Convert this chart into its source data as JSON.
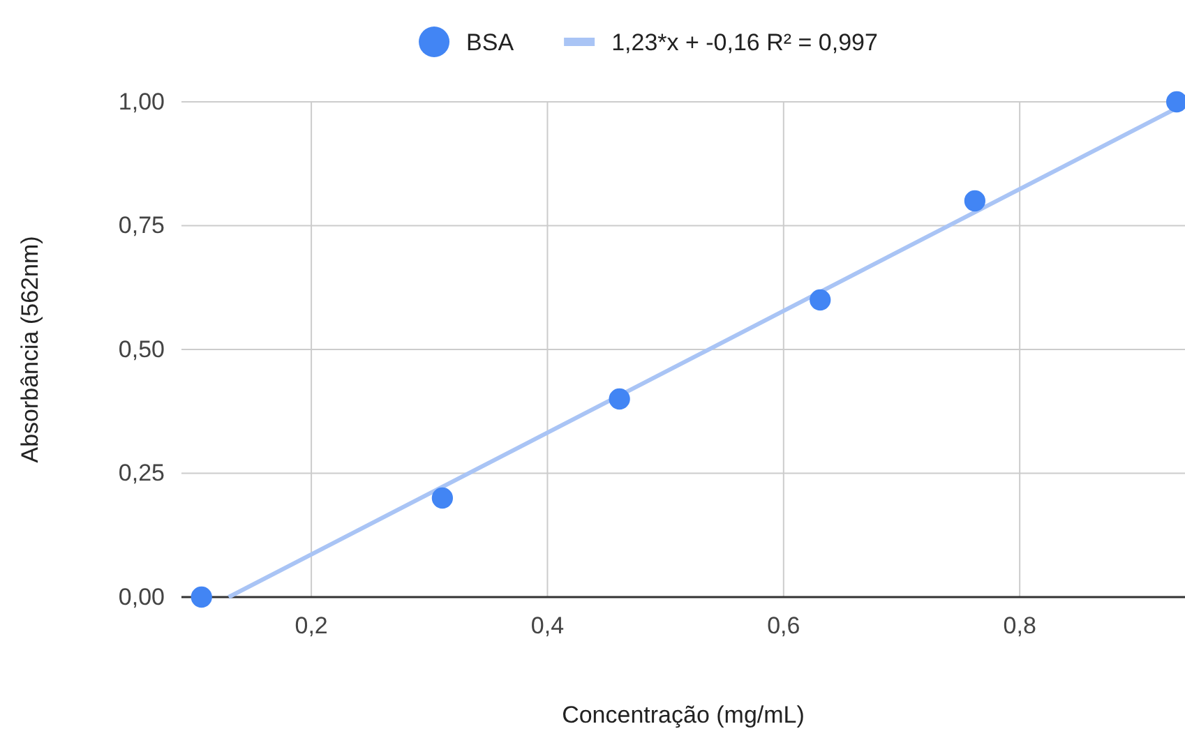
{
  "chart_data": {
    "type": "scatter",
    "xlabel": "Concentração (mg/mL)",
    "ylabel": "Absorbância (562nm)",
    "xlim": [
      0.09,
      0.94
    ],
    "ylim": [
      0,
      1
    ],
    "xticks": [
      {
        "value": 0.2,
        "label": "0,2"
      },
      {
        "value": 0.4,
        "label": "0,4"
      },
      {
        "value": 0.6,
        "label": "0,6"
      },
      {
        "value": 0.8,
        "label": "0,8"
      }
    ],
    "yticks": [
      {
        "value": 0,
        "label": "0,00"
      },
      {
        "value": 0.25,
        "label": "0,25"
      },
      {
        "value": 0.5,
        "label": "0,50"
      },
      {
        "value": 0.75,
        "label": "0,75"
      },
      {
        "value": 1,
        "label": "1,00"
      }
    ],
    "grid": true,
    "legend": "top",
    "series": [
      {
        "name": "BSA",
        "marker": "circle",
        "color": "#4285f4",
        "x": [
          0.107,
          0.311,
          0.461,
          0.631,
          0.762,
          0.933
        ],
        "values": [
          0,
          0.2,
          0.4,
          0.6,
          0.8,
          1.0
        ]
      },
      {
        "name": "1,23*x + -0,16 R² = 0,997",
        "type": "line",
        "marker": "none",
        "color": "#a9c4f5",
        "x": [
          0.13,
          0.94
        ],
        "values": [
          0,
          0.996
        ]
      }
    ]
  }
}
